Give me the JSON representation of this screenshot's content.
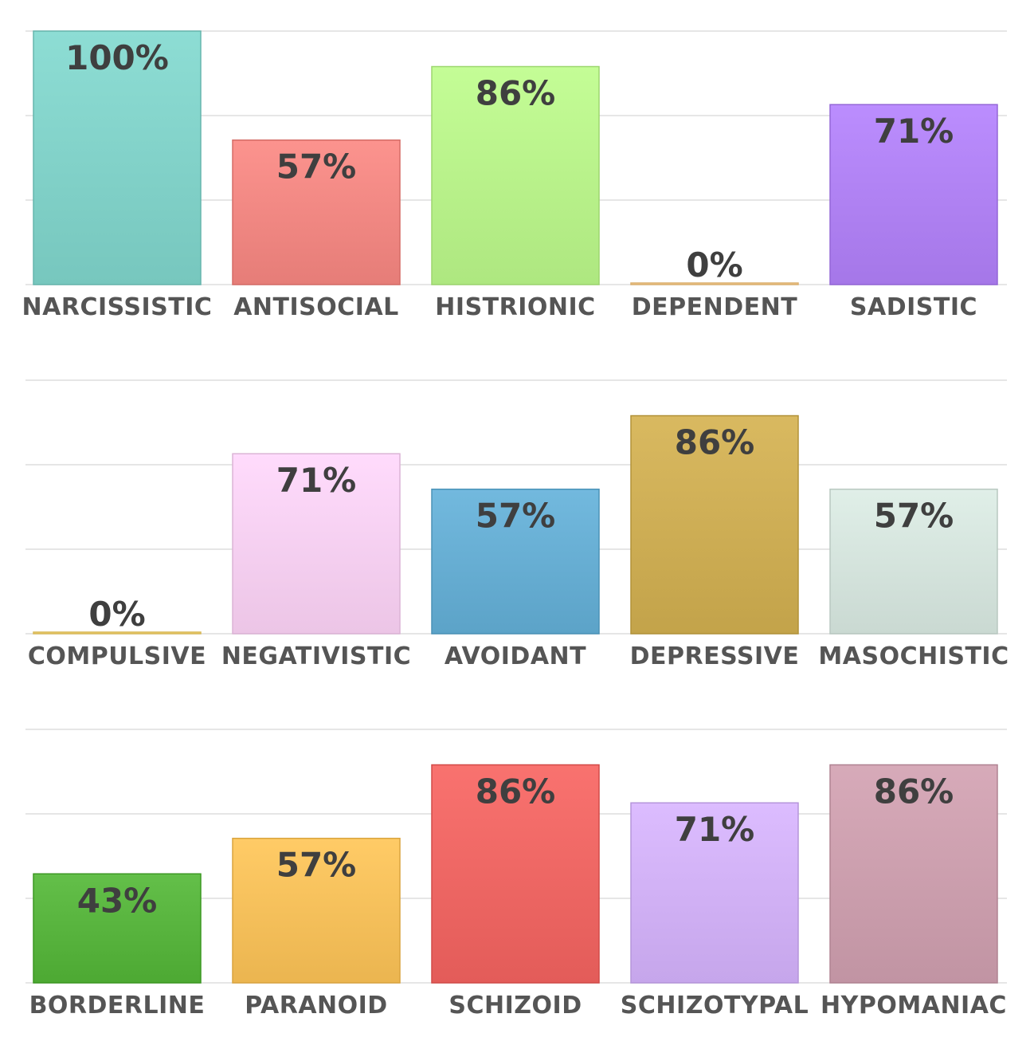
{
  "chart_data": [
    {
      "type": "bar",
      "categories": [
        "NARCISSISTIC",
        "ANTISOCIAL",
        "HISTRIONIC",
        "DEPENDENT",
        "SADISTIC"
      ],
      "values": [
        100,
        57,
        86,
        0,
        71
      ],
      "value_labels": [
        "100%",
        "57%",
        "86%",
        "0%",
        "71%"
      ],
      "colors": [
        "#7fcfc6",
        "#ee8580",
        "#b6ef88",
        "#f5c98a",
        "#ad7ff0"
      ],
      "ylim": [
        0,
        100
      ],
      "grid": true
    },
    {
      "type": "bar",
      "categories": [
        "COMPULSIVE",
        "NEGATIVISTIC",
        "AVOIDANT",
        "DEPRESSIVE",
        "MASOCHISTIC"
      ],
      "values": [
        0,
        71,
        57,
        86,
        57
      ],
      "value_labels": [
        "0%",
        "71%",
        "57%",
        "86%",
        "57%"
      ],
      "colors": [
        "#f2d271",
        "#f4cdee",
        "#64abd0",
        "#cbab52",
        "#d2e1da"
      ],
      "ylim": [
        0,
        100
      ],
      "grid": true
    },
    {
      "type": "bar",
      "categories": [
        "BORDERLINE",
        "PARANOID",
        "SCHIZOID",
        "SCHIZOTYPAL",
        "HYPOMANIAC"
      ],
      "values": [
        43,
        57,
        86,
        71,
        86
      ],
      "value_labels": [
        "43%",
        "57%",
        "86%",
        "71%",
        "86%"
      ],
      "colors": [
        "#55b13b",
        "#f3bd58",
        "#eb6461",
        "#ceaef3",
        "#c99cab"
      ],
      "ylim": [
        0,
        100
      ],
      "grid": true
    }
  ]
}
